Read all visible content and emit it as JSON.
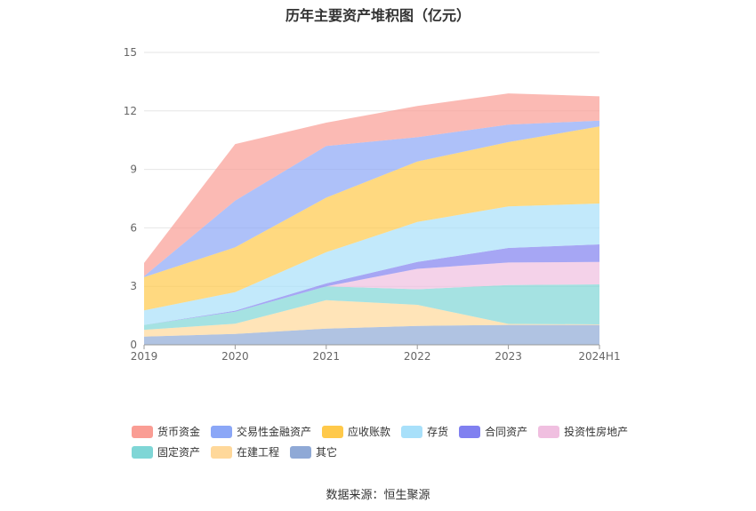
{
  "chart_data": {
    "type": "area",
    "stacked": true,
    "title": "历年主要资产堆积图（亿元）",
    "categories": [
      "2019",
      "2020",
      "2021",
      "2022",
      "2023",
      "2024H1"
    ],
    "ylim": [
      0,
      15
    ],
    "yticks": [
      0,
      3,
      6,
      9,
      12,
      15
    ],
    "grid": true,
    "legend_position": "bottom",
    "series": [
      {
        "name": "其它",
        "color": "#8fa9d6",
        "values": [
          0.42,
          0.56,
          0.83,
          0.97,
          1.02,
          1.02
        ]
      },
      {
        "name": "在建工程",
        "color": "#ffd89a",
        "values": [
          0.35,
          0.52,
          1.46,
          1.08,
          0.05,
          0.03
        ]
      },
      {
        "name": "固定资产",
        "color": "#7fd6d6",
        "values": [
          0.25,
          0.62,
          0.71,
          0.8,
          2.0,
          2.05
        ]
      },
      {
        "name": "投资性房地产",
        "color": "#f0bfe0",
        "values": [
          0.0,
          0.0,
          0.0,
          1.05,
          1.15,
          1.15
        ]
      },
      {
        "name": "合同资产",
        "color": "#8080f0",
        "values": [
          0.0,
          0.05,
          0.15,
          0.35,
          0.75,
          0.9
        ]
      },
      {
        "name": "存货",
        "color": "#a8e0fa",
        "values": [
          0.75,
          0.95,
          1.6,
          2.05,
          2.13,
          2.1
        ]
      },
      {
        "name": "应收账款",
        "color": "#ffc94a",
        "values": [
          1.7,
          2.3,
          2.8,
          3.1,
          3.3,
          3.95
        ]
      },
      {
        "name": "交易性金融资产",
        "color": "#8ba7f7",
        "values": [
          0.05,
          2.4,
          2.65,
          1.25,
          0.9,
          0.3
        ]
      },
      {
        "name": "货币资金",
        "color": "#fa9d94",
        "values": [
          0.68,
          2.9,
          1.2,
          1.6,
          1.6,
          1.25
        ]
      }
    ],
    "legend_order": [
      "货币资金",
      "交易性金融资产",
      "应收账款",
      "存货",
      "合同资产",
      "投资性房地产",
      "固定资产",
      "在建工程",
      "其它"
    ]
  },
  "source_text": "数据来源：恒生聚源"
}
